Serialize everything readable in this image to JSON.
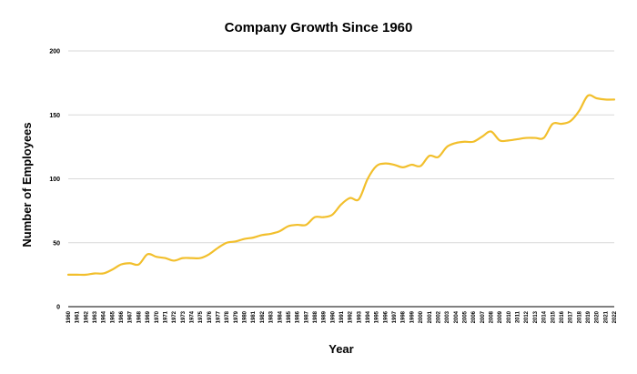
{
  "chart_data": {
    "type": "line",
    "title": "Company Growth Since 1960",
    "xlabel": "Year",
    "ylabel": "Number of Employees",
    "ylim": [
      0,
      200
    ],
    "yticks": [
      0,
      50,
      100,
      150,
      200
    ],
    "grid": true,
    "legend": "none",
    "series_color": "#F2BF2C",
    "categories": [
      "1960",
      "1961",
      "1962",
      "1963",
      "1964",
      "1965",
      "1966",
      "1967",
      "1968",
      "1969",
      "1970",
      "1971",
      "1972",
      "1973",
      "1974",
      "1975",
      "1976",
      "1977",
      "1978",
      "1979",
      "1980",
      "1981",
      "1982",
      "1983",
      "1984",
      "1985",
      "1986",
      "1987",
      "1988",
      "1989",
      "1990",
      "1991",
      "1992",
      "1993",
      "1994",
      "1995",
      "1996",
      "1997",
      "1998",
      "1999",
      "2000",
      "2001",
      "2002",
      "2003",
      "2004",
      "2005",
      "2006",
      "2007",
      "2008",
      "2009",
      "2010",
      "2011",
      "2012",
      "2013",
      "2014",
      "2015",
      "2016",
      "2017",
      "2018",
      "2019",
      "2020",
      "2021",
      "2022"
    ],
    "values": [
      25,
      25,
      25,
      26,
      26,
      29,
      33,
      34,
      33,
      41,
      39,
      38,
      36,
      38,
      38,
      38,
      41,
      46,
      50,
      51,
      53,
      54,
      56,
      57,
      59,
      63,
      64,
      64,
      70,
      70,
      72,
      80,
      85,
      84,
      100,
      110,
      112,
      111,
      109,
      111,
      110,
      118,
      117,
      125,
      128,
      129,
      129,
      133,
      137,
      130,
      130,
      131,
      132,
      132,
      132,
      143,
      143,
      145,
      153,
      165,
      163,
      162,
      162
    ]
  }
}
